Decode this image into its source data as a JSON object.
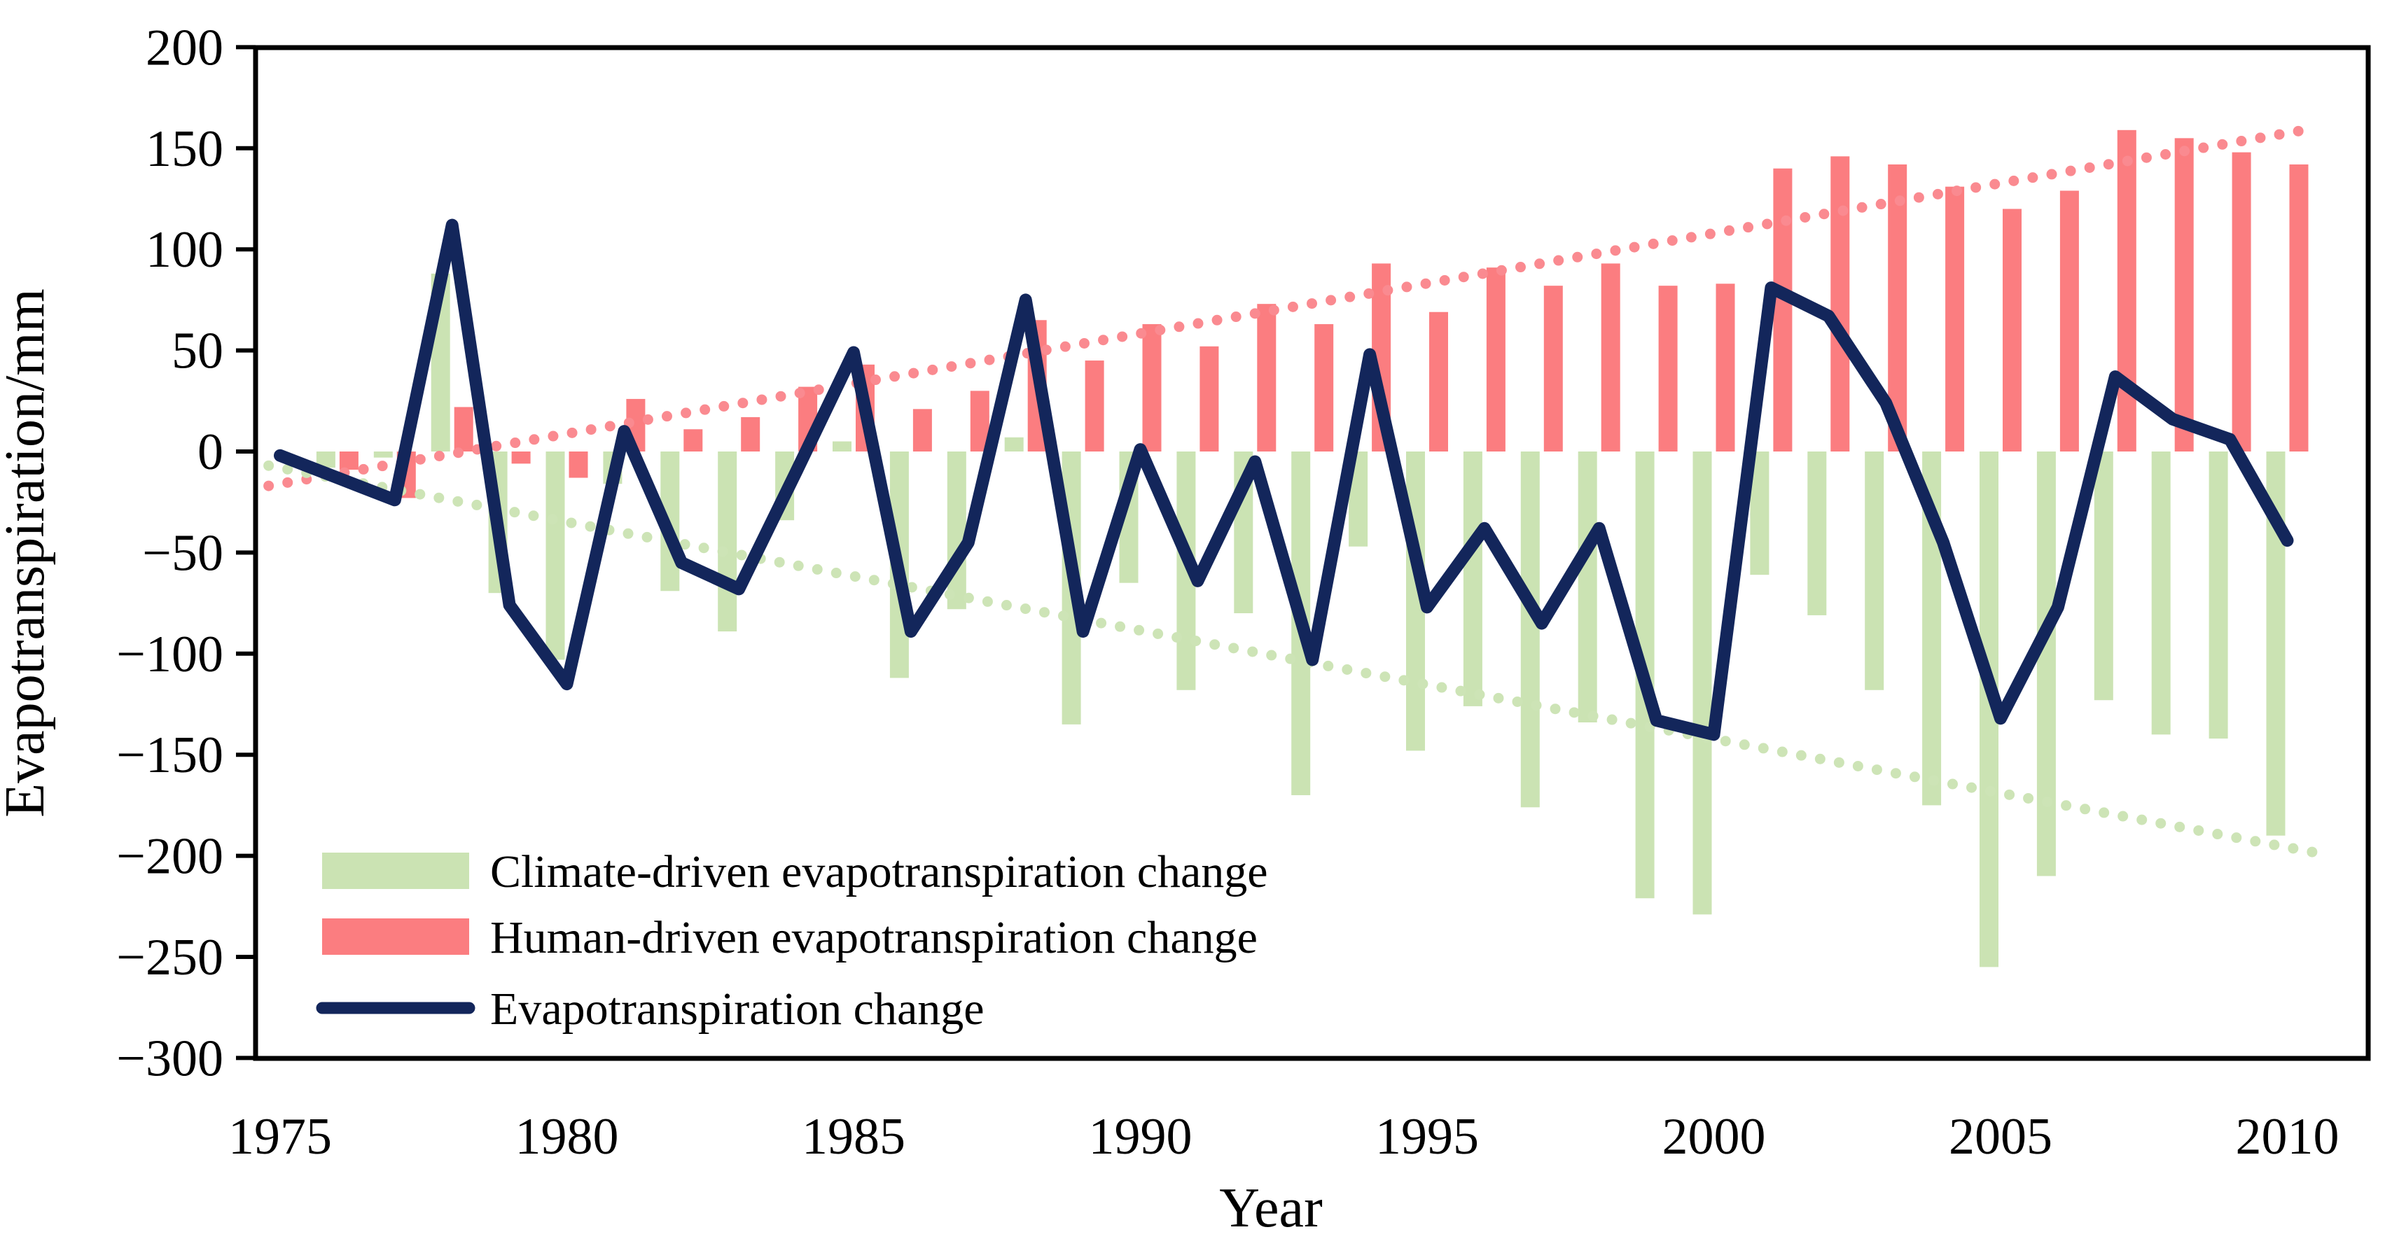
{
  "chart_data": {
    "type": "bar+line",
    "title": "",
    "xlabel": "Year",
    "ylabel": "Evapotranspiration/mm",
    "ylim": [
      -300,
      200
    ],
    "grid": false,
    "legend_position": "inside-bottom-left",
    "yticks": [
      200,
      150,
      100,
      50,
      0,
      -50,
      -100,
      -150,
      -200,
      -250,
      -300
    ],
    "ytick_labels": [
      "200",
      "150",
      "100",
      "50",
      "0",
      "−50",
      "−100",
      "−150",
      "−200",
      "−250",
      "−300"
    ],
    "xticks": [
      1975,
      1980,
      1985,
      1990,
      1995,
      2000,
      2005,
      2010
    ],
    "xtick_labels": [
      "1975",
      "1980",
      "1985",
      "1990",
      "1995",
      "2000",
      "2005",
      "2010"
    ],
    "years": [
      1975,
      1976,
      1977,
      1978,
      1979,
      1980,
      1981,
      1982,
      1983,
      1984,
      1985,
      1986,
      1987,
      1988,
      1989,
      1990,
      1991,
      1992,
      1993,
      1994,
      1995,
      1996,
      1997,
      1998,
      1999,
      2000,
      2001,
      2002,
      2003,
      2004,
      2005,
      2006,
      2007,
      2008,
      2009,
      2010
    ],
    "series": [
      {
        "name": "Climate-driven evapotranspiration change",
        "type": "bar",
        "color": "#cbe3b3",
        "values": [
          0,
          -8,
          -3,
          88,
          -70,
          -103,
          -16,
          -69,
          -89,
          -34,
          5,
          -112,
          -78,
          7,
          -135,
          -65,
          -118,
          -80,
          -170,
          -47,
          -148,
          -126,
          -176,
          -134,
          -221,
          -229,
          -61,
          -81,
          -118,
          -175,
          -255,
          -210,
          -123,
          -140,
          -142,
          -190
        ]
      },
      {
        "name": "Human-driven evapotranspiration change",
        "type": "bar",
        "color": "#fb7d80",
        "values": [
          0,
          -9,
          -23,
          22,
          -6,
          -13,
          26,
          11,
          17,
          32,
          43,
          21,
          30,
          65,
          45,
          63,
          52,
          73,
          63,
          93,
          69,
          91,
          82,
          93,
          82,
          83,
          140,
          146,
          142,
          131,
          120,
          129,
          159,
          155,
          148,
          142
        ]
      },
      {
        "name": "Evapotranspiration change",
        "type": "line",
        "color": "#13265b",
        "values": [
          -2,
          -13,
          -24,
          112,
          -76,
          -115,
          10,
          -55,
          -68,
          -10,
          49,
          -89,
          -45,
          75,
          -89,
          1,
          -64,
          -5,
          -103,
          48,
          -77,
          -38,
          -85,
          -38,
          -133,
          -140,
          81,
          67,
          24,
          -45,
          -132,
          -77,
          37,
          16,
          6,
          -44
        ]
      }
    ],
    "trendlines": [
      {
        "name": "human-driven-trend",
        "style": "dotted",
        "color": "#fa8a90",
        "start": {
          "year": 1974.8,
          "value": -17
        },
        "end": {
          "year": 2010.5,
          "value": 160
        }
      },
      {
        "name": "climate-driven-trend",
        "style": "dotted",
        "color": "#cde4b6",
        "start": {
          "year": 1974.8,
          "value": -7
        },
        "end": {
          "year": 2010.6,
          "value": -199
        }
      }
    ]
  }
}
